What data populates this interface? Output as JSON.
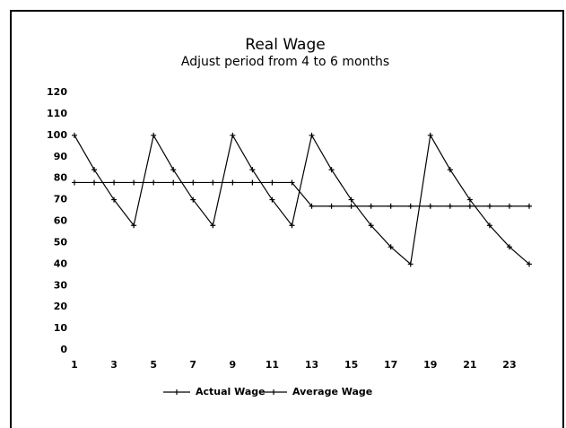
{
  "chart_data": {
    "type": "line",
    "title": "Real Wage",
    "subtitle": "Adjust period from 4 to 6 months",
    "x": [
      1,
      2,
      3,
      4,
      5,
      6,
      7,
      8,
      9,
      10,
      11,
      12,
      13,
      14,
      15,
      16,
      17,
      18,
      19,
      20,
      21,
      22,
      23,
      24
    ],
    "series": [
      {
        "name": "Actual Wage",
        "color": "#000000",
        "values": [
          100,
          84,
          70,
          58,
          100,
          84,
          70,
          58,
          100,
          84,
          70,
          58,
          100,
          84,
          70,
          58,
          48,
          40,
          100,
          84,
          70,
          58,
          48,
          40
        ]
      },
      {
        "name": "Average Wage",
        "color": "#000000",
        "values": [
          78,
          78,
          78,
          78,
          78,
          78,
          78,
          78,
          78,
          78,
          78,
          78,
          67,
          67,
          67,
          67,
          67,
          67,
          67,
          67,
          67,
          67,
          67,
          67
        ]
      }
    ],
    "xlim": [
      1,
      24
    ],
    "xticks": [
      1,
      3,
      5,
      7,
      9,
      11,
      13,
      15,
      17,
      19,
      21,
      23
    ],
    "ylim": [
      0,
      120
    ],
    "yticks": [
      0,
      10,
      20,
      30,
      40,
      50,
      60,
      70,
      80,
      90,
      100,
      110,
      120
    ],
    "grid": false,
    "legend": "bottom"
  }
}
